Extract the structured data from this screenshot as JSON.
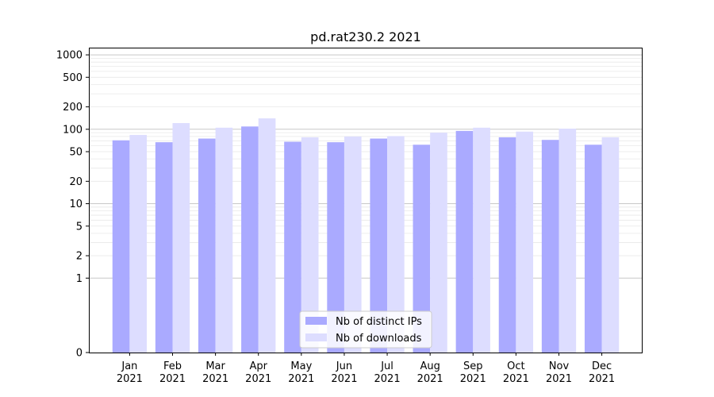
{
  "chart_data": {
    "type": "bar",
    "title": "pd.rat230.2 2021",
    "xlabel": "",
    "ylabel": "",
    "categories": [
      "Jan\n2021",
      "Feb\n2021",
      "Mar\n2021",
      "Apr\n2021",
      "May\n2021",
      "Jun\n2021",
      "Jul\n2021",
      "Aug\n2021",
      "Sep\n2021",
      "Oct\n2021",
      "Nov\n2021",
      "Dec\n2021"
    ],
    "series": [
      {
        "name": "Nb of distinct IPs",
        "color": "#aaaaff",
        "values": [
          71,
          67,
          75,
          109,
          68,
          67,
          75,
          62,
          95,
          78,
          72,
          62
        ]
      },
      {
        "name": "Nb of downloads",
        "color": "#ddddff",
        "values": [
          84,
          121,
          105,
          140,
          78,
          80,
          81,
          90,
          105,
          93,
          102,
          78
        ]
      }
    ],
    "yscale": "symlog",
    "ylim": [
      0,
      1250
    ],
    "yticks": [
      0,
      1,
      2,
      5,
      10,
      20,
      50,
      100,
      200,
      500,
      1000
    ],
    "ytick_labels": [
      "0",
      "1",
      "2",
      "5",
      "10",
      "20",
      "50",
      "100",
      "200",
      "500",
      "1000"
    ],
    "grid": true,
    "legend_position": "lower-center"
  }
}
